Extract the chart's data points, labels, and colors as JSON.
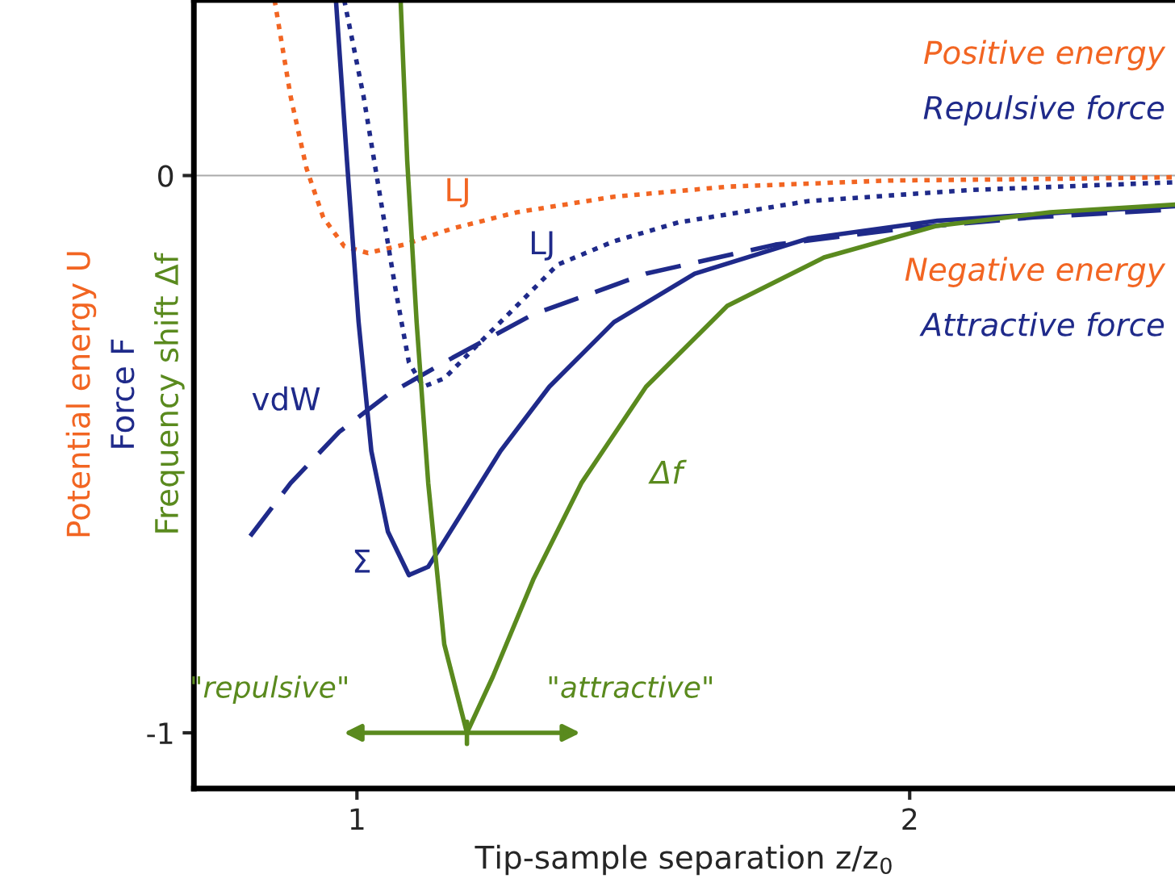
{
  "chart_data": {
    "type": "line",
    "xlabel": "Tip-sample separation z/z$_{0}$",
    "ylabel": "Potential energy U\nForce F\nFrequency shift Δf",
    "xlim": [
      0.705,
      2.48
    ],
    "ylim": [
      -1.1,
      0.315
    ],
    "xticks": [
      1,
      2
    ],
    "yticks": [
      -1,
      0
    ],
    "grid": false,
    "legend": false,
    "ref_lines": [
      {
        "axis": "y",
        "value": 0,
        "color": "#aaaaaa"
      }
    ],
    "series": [
      {
        "name": "LJ",
        "color": "#f26522",
        "line_style": "dotted",
        "x": [
          0.851,
          0.88,
          0.909,
          0.939,
          0.977,
          1.02,
          1.085,
          1.173,
          1.289,
          1.465,
          1.67,
          1.962,
          2.254,
          2.48
        ],
        "values": [
          0.315,
          0.142,
          0.012,
          -0.075,
          -0.127,
          -0.139,
          -0.124,
          -0.095,
          -0.066,
          -0.038,
          -0.02,
          -0.009,
          -0.006,
          -0.003
        ]
      },
      {
        "name": "LJ",
        "color": "#1f2a8a",
        "line_style": "dotted",
        "x": [
          0.977,
          1.012,
          1.041,
          1.07,
          1.094,
          1.12,
          1.158,
          1.216,
          1.289,
          1.363,
          1.465,
          1.582,
          1.816,
          2.108,
          2.48
        ],
        "values": [
          0.315,
          0.142,
          -0.032,
          -0.205,
          -0.335,
          -0.379,
          -0.364,
          -0.306,
          -0.234,
          -0.16,
          -0.118,
          -0.084,
          -0.046,
          -0.026,
          -0.012
        ]
      },
      {
        "name": "vdW",
        "color": "#1f2a8a",
        "line_style": "dashed",
        "x": [
          0.807,
          0.88,
          0.968,
          1.056,
          1.173,
          1.319,
          1.523,
          1.757,
          1.991,
          2.225,
          2.48
        ],
        "values": [
          -0.647,
          -0.552,
          -0.46,
          -0.393,
          -0.327,
          -0.249,
          -0.176,
          -0.124,
          -0.095,
          -0.075,
          -0.061
        ]
      },
      {
        "name": "Σ",
        "color": "#1f2a8a",
        "line_style": "solid",
        "x": [
          0.962,
          0.982,
          1.003,
          1.026,
          1.056,
          1.094,
          1.129,
          1.187,
          1.26,
          1.348,
          1.465,
          1.611,
          1.816,
          2.05,
          2.284,
          2.48
        ],
        "values": [
          0.315,
          0.026,
          -0.263,
          -0.494,
          -0.639,
          -0.717,
          -0.702,
          -0.61,
          -0.494,
          -0.379,
          -0.263,
          -0.176,
          -0.113,
          -0.081,
          -0.066,
          -0.055
        ]
      },
      {
        "name": "Δf",
        "color": "#5a8a1e",
        "line_style": "solid",
        "x": [
          1.079,
          1.091,
          1.108,
          1.129,
          1.158,
          1.199,
          1.246,
          1.319,
          1.406,
          1.523,
          1.67,
          1.845,
          2.05,
          2.254,
          2.48
        ],
        "values": [
          0.315,
          0.026,
          -0.263,
          -0.552,
          -0.841,
          -1.0,
          -0.899,
          -0.725,
          -0.552,
          -0.379,
          -0.234,
          -0.147,
          -0.09,
          -0.066,
          -0.052
        ]
      }
    ],
    "annotations": [
      "\"repulsive\"",
      "\"attractive\"",
      "Positive energy",
      "Repulsive force",
      "Negative energy",
      "Attractive force"
    ]
  }
}
